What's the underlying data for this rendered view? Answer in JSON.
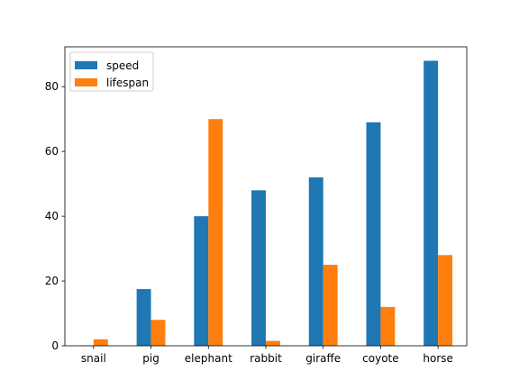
{
  "chart_data": {
    "type": "bar",
    "title": "",
    "xlabel": "",
    "ylabel": "",
    "categories": [
      "snail",
      "pig",
      "elephant",
      "rabbit",
      "giraffe",
      "coyote",
      "horse"
    ],
    "series": [
      {
        "name": "speed",
        "color": "#1f77b4",
        "values": [
          0.1,
          17.5,
          40,
          48,
          52,
          69,
          88
        ]
      },
      {
        "name": "lifespan",
        "color": "#ff7f0e",
        "values": [
          2,
          8,
          70,
          1.5,
          25,
          12,
          28
        ]
      }
    ],
    "ylim": [
      0,
      92.3
    ],
    "yticks": [
      0,
      20,
      40,
      60,
      80
    ],
    "grid": false,
    "legend_position": "upper-left"
  }
}
